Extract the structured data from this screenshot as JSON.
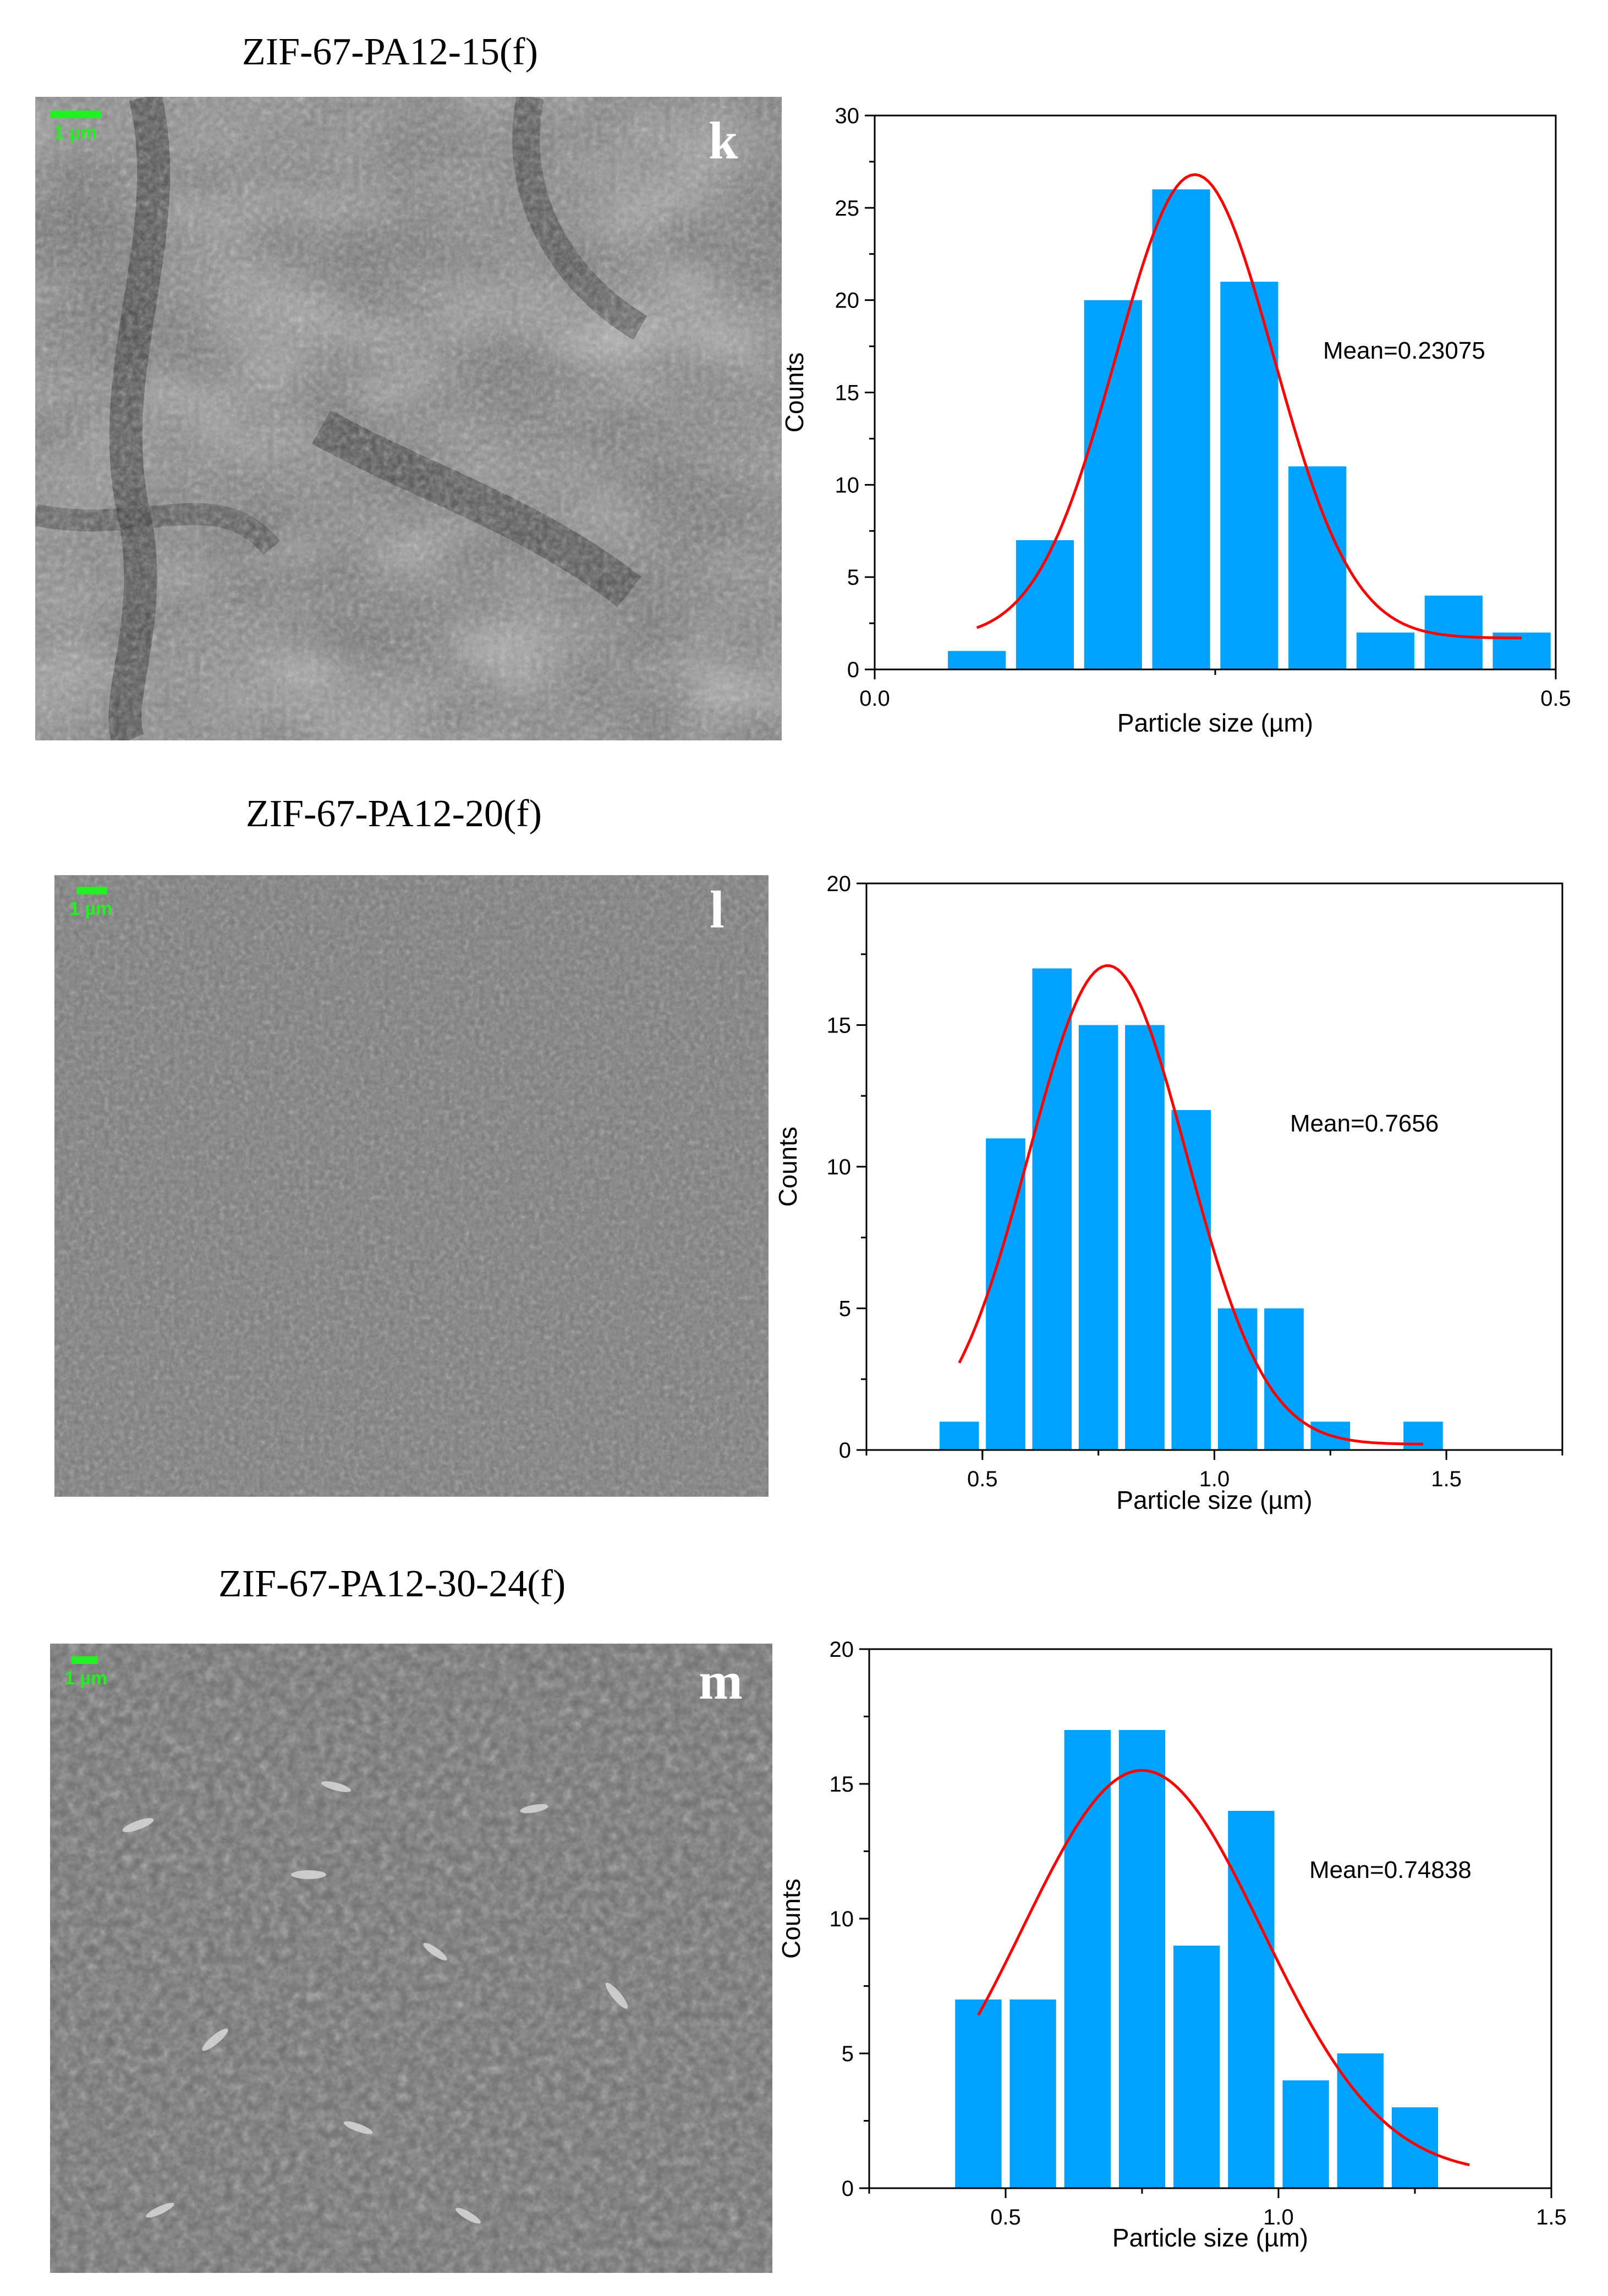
{
  "panels": [
    {
      "title": "ZIF-67-PA12-15(f)",
      "letter": "k",
      "scale_label": "1 µm",
      "chart_data": {
        "type": "bar",
        "xlabel": "Particle size (µm)",
        "ylabel": "Counts",
        "xlim": [
          0.0,
          0.5
        ],
        "ylim": [
          0,
          30
        ],
        "xticks": [
          0.0,
          0.5
        ],
        "xtick_labels": [
          "0.0",
          "0.5"
        ],
        "yticks": [
          0,
          5,
          10,
          15,
          20,
          25,
          30
        ],
        "ytick_labels": [
          "0",
          "5",
          "10",
          "15",
          "20",
          "25",
          "30"
        ],
        "bin_width": 0.05,
        "bins": [
          0.075,
          0.125,
          0.175,
          0.225,
          0.275,
          0.325,
          0.375,
          0.425,
          0.475
        ],
        "values": [
          1,
          7,
          20,
          26,
          21,
          11,
          2,
          4,
          2
        ],
        "fit": {
          "type": "gauss",
          "y0": 1.7,
          "amplitude": 25.1,
          "center": 0.235,
          "sigma": 0.058,
          "x_range": [
            0.075,
            0.475
          ]
        },
        "annotation": "Mean=0.23075",
        "bar_color": "#00a2ff",
        "fit_color": "#ff0000",
        "grid": false
      }
    },
    {
      "title": "ZIF-67-PA12-20(f)",
      "letter": "l",
      "scale_label": "1 µm",
      "chart_data": {
        "type": "bar",
        "xlabel": "Particle size (µm)",
        "ylabel": "Counts",
        "xlim": [
          0.25,
          1.75
        ],
        "ylim": [
          0,
          20
        ],
        "xticks": [
          0.5,
          1.0,
          1.5
        ],
        "xtick_labels": [
          "0.5",
          "1.0",
          "1.5"
        ],
        "yticks": [
          0,
          5,
          10,
          15,
          20
        ],
        "ytick_labels": [
          "0",
          "5",
          "10",
          "15",
          "20"
        ],
        "bin_width": 0.1,
        "bins": [
          0.45,
          0.55,
          0.65,
          0.75,
          0.85,
          0.95,
          1.05,
          1.15,
          1.25,
          1.35,
          1.45
        ],
        "values": [
          1,
          11,
          17,
          15,
          15,
          12,
          5,
          5,
          1,
          0,
          1
        ],
        "fit": {
          "type": "gauss",
          "y0": 0.2,
          "amplitude": 16.9,
          "center": 0.77,
          "sigma": 0.17,
          "x_range": [
            0.45,
            1.45
          ]
        },
        "annotation": "Mean=0.7656",
        "bar_color": "#00a2ff",
        "fit_color": "#ff0000",
        "grid": false
      }
    },
    {
      "title": "ZIF-67-PA12-30-24(f)",
      "letter": "m",
      "scale_label": "1 µm",
      "chart_data": {
        "type": "bar",
        "xlabel": "Particle size (µm)",
        "ylabel": "Counts",
        "xlim": [
          0.25,
          1.5
        ],
        "ylim": [
          0,
          20
        ],
        "xticks": [
          0.5,
          1.0,
          1.5
        ],
        "xtick_labels": [
          "0.5",
          "1.0",
          "1.5"
        ],
        "yticks": [
          0,
          5,
          10,
          15,
          20
        ],
        "ytick_labels": [
          "0",
          "5",
          "10",
          "15",
          "20"
        ],
        "bin_width": 0.1,
        "bins": [
          0.45,
          0.55,
          0.65,
          0.75,
          0.85,
          0.95,
          1.05,
          1.15,
          1.25
        ],
        "values": [
          7,
          7,
          17,
          17,
          9,
          14,
          4,
          5,
          3
        ],
        "fit": {
          "type": "gauss",
          "y0": 0.5,
          "amplitude": 15.0,
          "center": 0.75,
          "sigma": 0.22,
          "x_range": [
            0.45,
            1.35
          ]
        },
        "annotation": "Mean=0.74838",
        "bar_color": "#00a2ff",
        "fit_color": "#ff0000",
        "grid": false
      }
    }
  ]
}
